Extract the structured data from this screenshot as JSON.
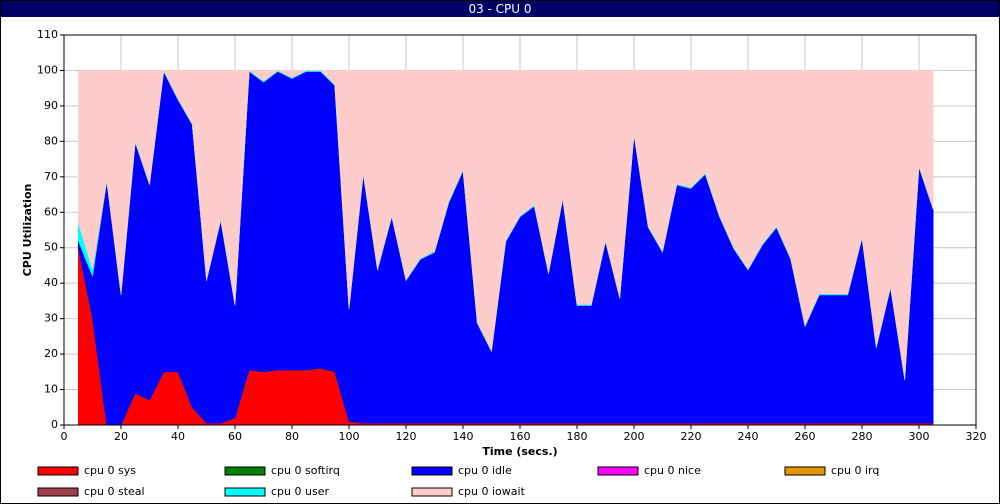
{
  "window_title": "03 - CPU 0",
  "chart_data": {
    "type": "stacked_area",
    "xlabel": "Time (secs.)",
    "ylabel": "CPU Utilization",
    "xlim": [
      0,
      320
    ],
    "ylim": [
      0,
      110
    ],
    "xticks": [
      0,
      20,
      40,
      60,
      80,
      100,
      120,
      140,
      160,
      180,
      200,
      220,
      240,
      260,
      280,
      300,
      320
    ],
    "yticks": [
      0,
      10,
      20,
      30,
      40,
      50,
      60,
      70,
      80,
      90,
      100,
      110
    ],
    "grid": true,
    "x": [
      5,
      10,
      15,
      20,
      25,
      30,
      35,
      40,
      45,
      50,
      55,
      60,
      65,
      70,
      75,
      80,
      85,
      90,
      95,
      100,
      105,
      110,
      115,
      120,
      125,
      130,
      135,
      140,
      145,
      150,
      155,
      160,
      165,
      170,
      175,
      180,
      185,
      190,
      195,
      200,
      205,
      210,
      215,
      220,
      225,
      230,
      235,
      240,
      245,
      250,
      255,
      260,
      265,
      270,
      275,
      280,
      285,
      290,
      295,
      300,
      305
    ],
    "series": [
      {
        "name": "cpu 0 sys",
        "color": "#ff0000",
        "values": [
          50,
          30,
          0,
          0,
          9,
          7,
          15,
          15,
          5,
          0.5,
          0.5,
          2,
          15.5,
          15,
          15.5,
          15.5,
          15.5,
          16,
          15,
          1,
          0.5,
          0.5,
          0.5,
          0.5,
          0.5,
          0.5,
          0.5,
          0.5,
          0.5,
          0.5,
          0.5,
          0.5,
          0.5,
          0.5,
          0.5,
          0.5,
          0.5,
          0.5,
          0.5,
          0.5,
          0.5,
          0.5,
          0.5,
          0.5,
          0.5,
          0.5,
          0.5,
          0.5,
          0.5,
          0.5,
          0.5,
          0.5,
          0.5,
          0.5,
          0.5,
          0.5,
          0.5,
          0.5,
          0.5,
          0.5,
          0.5
        ]
      },
      {
        "name": "cpu 0 softirq",
        "color": "#008000",
        "values": [
          0,
          0,
          0,
          0,
          0,
          0,
          0,
          0,
          0,
          0,
          0,
          0,
          0,
          0,
          0,
          0,
          0,
          0,
          0,
          0,
          0,
          0,
          0,
          0,
          0,
          0,
          0,
          0,
          0,
          0,
          0,
          0,
          0,
          0,
          0,
          0,
          0,
          0,
          0,
          0,
          0,
          0,
          0,
          0,
          0,
          0,
          0,
          0,
          0,
          0,
          0,
          0,
          0,
          0,
          0,
          0,
          0,
          0,
          0,
          0,
          0
        ]
      },
      {
        "name": "cpu 0 idle",
        "color": "#0000ff",
        "values": [
          2,
          12,
          68.7,
          36.7,
          70.7,
          60.7,
          84.7,
          76.7,
          79.7,
          40.2,
          57.2,
          31.7,
          84.2,
          81.7,
          84.2,
          82.2,
          84.2,
          83.7,
          80.7,
          31.7,
          70.2,
          43.2,
          58.2,
          40.2,
          46.2,
          48.2,
          62.2,
          71.2,
          28.2,
          20.2,
          51.2,
          58.2,
          61.2,
          42.2,
          63.2,
          33.2,
          33.2,
          51.2,
          35.2,
          81.2,
          55.2,
          48.2,
          67.2,
          66.2,
          70.2,
          58.2,
          49.2,
          43.2,
          50.2,
          55.2,
          46.2,
          27.2,
          36.2,
          36.2,
          36.2,
          52.2,
          21.2,
          38.2,
          12.2,
          72.2,
          60.2
        ]
      },
      {
        "name": "cpu 0 nice",
        "color": "#ff00ff",
        "values": [
          0,
          0,
          0,
          0,
          0,
          0,
          0,
          0,
          0,
          0,
          0,
          0,
          0,
          0,
          0,
          0,
          0,
          0,
          0,
          0,
          0,
          0,
          0,
          0,
          0,
          0,
          0,
          0,
          0,
          0,
          0,
          0,
          0,
          0,
          0,
          0,
          0,
          0,
          0,
          0,
          0,
          0,
          0,
          0,
          0,
          0,
          0,
          0,
          0,
          0,
          0,
          0,
          0,
          0,
          0,
          0,
          0,
          0,
          0,
          0,
          0
        ]
      },
      {
        "name": "cpu 0 irq",
        "color": "#e69500",
        "values": [
          0,
          0,
          0,
          0,
          0,
          0,
          0,
          0,
          0,
          0,
          0,
          0,
          0,
          0,
          0,
          0,
          0,
          0,
          0,
          0,
          0,
          0,
          0,
          0,
          0,
          0,
          0,
          0,
          0,
          0,
          0,
          0,
          0,
          0,
          0,
          0,
          0,
          0,
          0,
          0,
          0,
          0,
          0,
          0,
          0,
          0,
          0,
          0,
          0,
          0,
          0,
          0,
          0,
          0,
          0,
          0,
          0,
          0,
          0,
          0,
          0
        ]
      },
      {
        "name": "cpu 0 steal",
        "color": "#a0404a",
        "values": [
          0,
          0,
          0,
          0,
          0,
          0,
          0,
          0,
          0,
          0,
          0,
          0,
          0,
          0,
          0,
          0,
          0,
          0,
          0,
          0,
          0,
          0,
          0,
          0,
          0,
          0,
          0,
          0,
          0,
          0,
          0,
          0,
          0,
          0,
          0,
          0,
          0,
          0,
          0,
          0,
          0,
          0,
          0,
          0,
          0,
          0,
          0,
          0,
          0,
          0,
          0,
          0,
          0,
          0,
          0,
          0,
          0,
          0,
          0,
          0,
          0
        ]
      },
      {
        "name": "cpu 0 user",
        "color": "#00ffff",
        "values": [
          5,
          2,
          0.3,
          0.3,
          0.3,
          0.3,
          0.3,
          0.3,
          0.3,
          0.3,
          0.3,
          0.3,
          0.3,
          0.3,
          0.3,
          0.3,
          0.3,
          0.3,
          0.3,
          0.3,
          0.3,
          0.3,
          0.3,
          0.3,
          0.3,
          0.3,
          0.3,
          0.3,
          0.3,
          0.3,
          0.3,
          0.3,
          0.3,
          0.3,
          0.3,
          0.3,
          0.3,
          0.3,
          0.3,
          0.3,
          0.3,
          0.3,
          0.3,
          0.3,
          0.3,
          0.3,
          0.3,
          0.3,
          0.3,
          0.3,
          0.3,
          0.3,
          0.3,
          0.3,
          0.3,
          0.3,
          0.3,
          0.3,
          0.3,
          0.3,
          0.3
        ]
      },
      {
        "name": "cpu 0 iowait",
        "color": "#ffcccc",
        "values": [
          43,
          56,
          31,
          63,
          20,
          32,
          0,
          8,
          15,
          59,
          42,
          66,
          0,
          3,
          0,
          2,
          0,
          0,
          4,
          67,
          29,
          56,
          41,
          59,
          53,
          51,
          37,
          28,
          71,
          79,
          48,
          41,
          38,
          57,
          36,
          66,
          66,
          48,
          64,
          18,
          44,
          51,
          32,
          33,
          29,
          41,
          50,
          56,
          49,
          44,
          53,
          72,
          63,
          63,
          63,
          47,
          78,
          61,
          87,
          27,
          39
        ]
      }
    ]
  }
}
